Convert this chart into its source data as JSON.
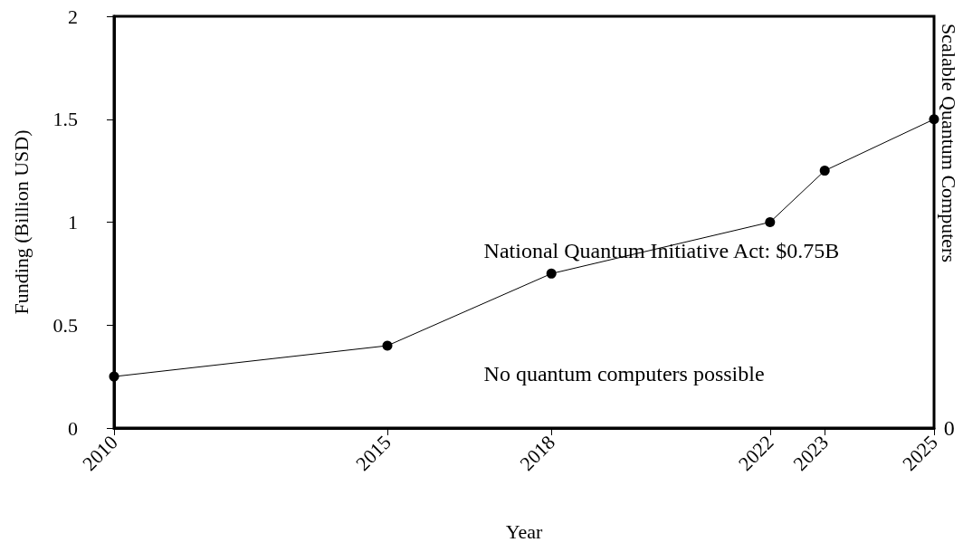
{
  "chart_data": {
    "type": "line",
    "xlabel": "Year",
    "ylabel": "Funding (Billion USD)",
    "y2label": "Scalable Quantum Computers",
    "x": [
      2010,
      2015,
      2018,
      2022,
      2023,
      2025
    ],
    "series": [
      {
        "color": "#000000",
        "values": [
          0.25,
          0.4,
          0.75,
          1.0,
          1.25,
          1.5
        ]
      }
    ],
    "xlim": [
      2010,
      2025
    ],
    "xticks": [
      2010,
      2015,
      2018,
      2022,
      2023,
      2025
    ],
    "ylim": [
      0,
      2
    ],
    "yticks": [
      0,
      0.5,
      1,
      1.5,
      2
    ],
    "annotations": [
      "National Quantum Initiative Act: $0.75B",
      "No quantum computers possible",
      "0"
    ],
    "grid": false,
    "marker": "circle",
    "line_style": "solid"
  }
}
